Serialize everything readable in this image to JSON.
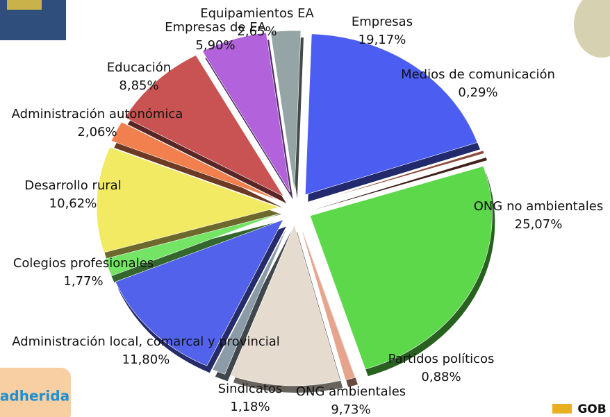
{
  "chart_data": {
    "type": "pie",
    "categories": [
      "Empresas",
      "Medios de comunicación",
      "ONG no ambientales",
      "Partidos políticos",
      "ONG ambientales",
      "Sindicatos",
      "Administración local, comarcal y provincial",
      "Colegios profesionales",
      "Desarrollo rural",
      "Administración autonómica",
      "Educación",
      "Empresas de EA",
      "Equipamientos EA"
    ],
    "values": [
      19.17,
      0.29,
      25.07,
      0.88,
      9.73,
      1.18,
      11.8,
      1.77,
      10.62,
      2.06,
      8.85,
      5.9,
      2.65
    ],
    "value_labels": [
      "19,17%",
      "0,29%",
      "25,07%",
      "0,88%",
      "9,73%",
      "1,18%",
      "11,80%",
      "1,77%",
      "10,62%",
      "2,06%",
      "8,85%",
      "5,90%",
      "2,65%"
    ],
    "colors": [
      "#4c5ef2",
      "#8e4a3c",
      "#5cd84a",
      "#e6a48c",
      "#e6dbcf",
      "#8b9ca8",
      "#5262ea",
      "#74e464",
      "#f2ea62",
      "#f2804e",
      "#c95252",
      "#b262da",
      "#95a5a5"
    ]
  },
  "logos": {
    "left": "adherida",
    "right": "GOB"
  }
}
